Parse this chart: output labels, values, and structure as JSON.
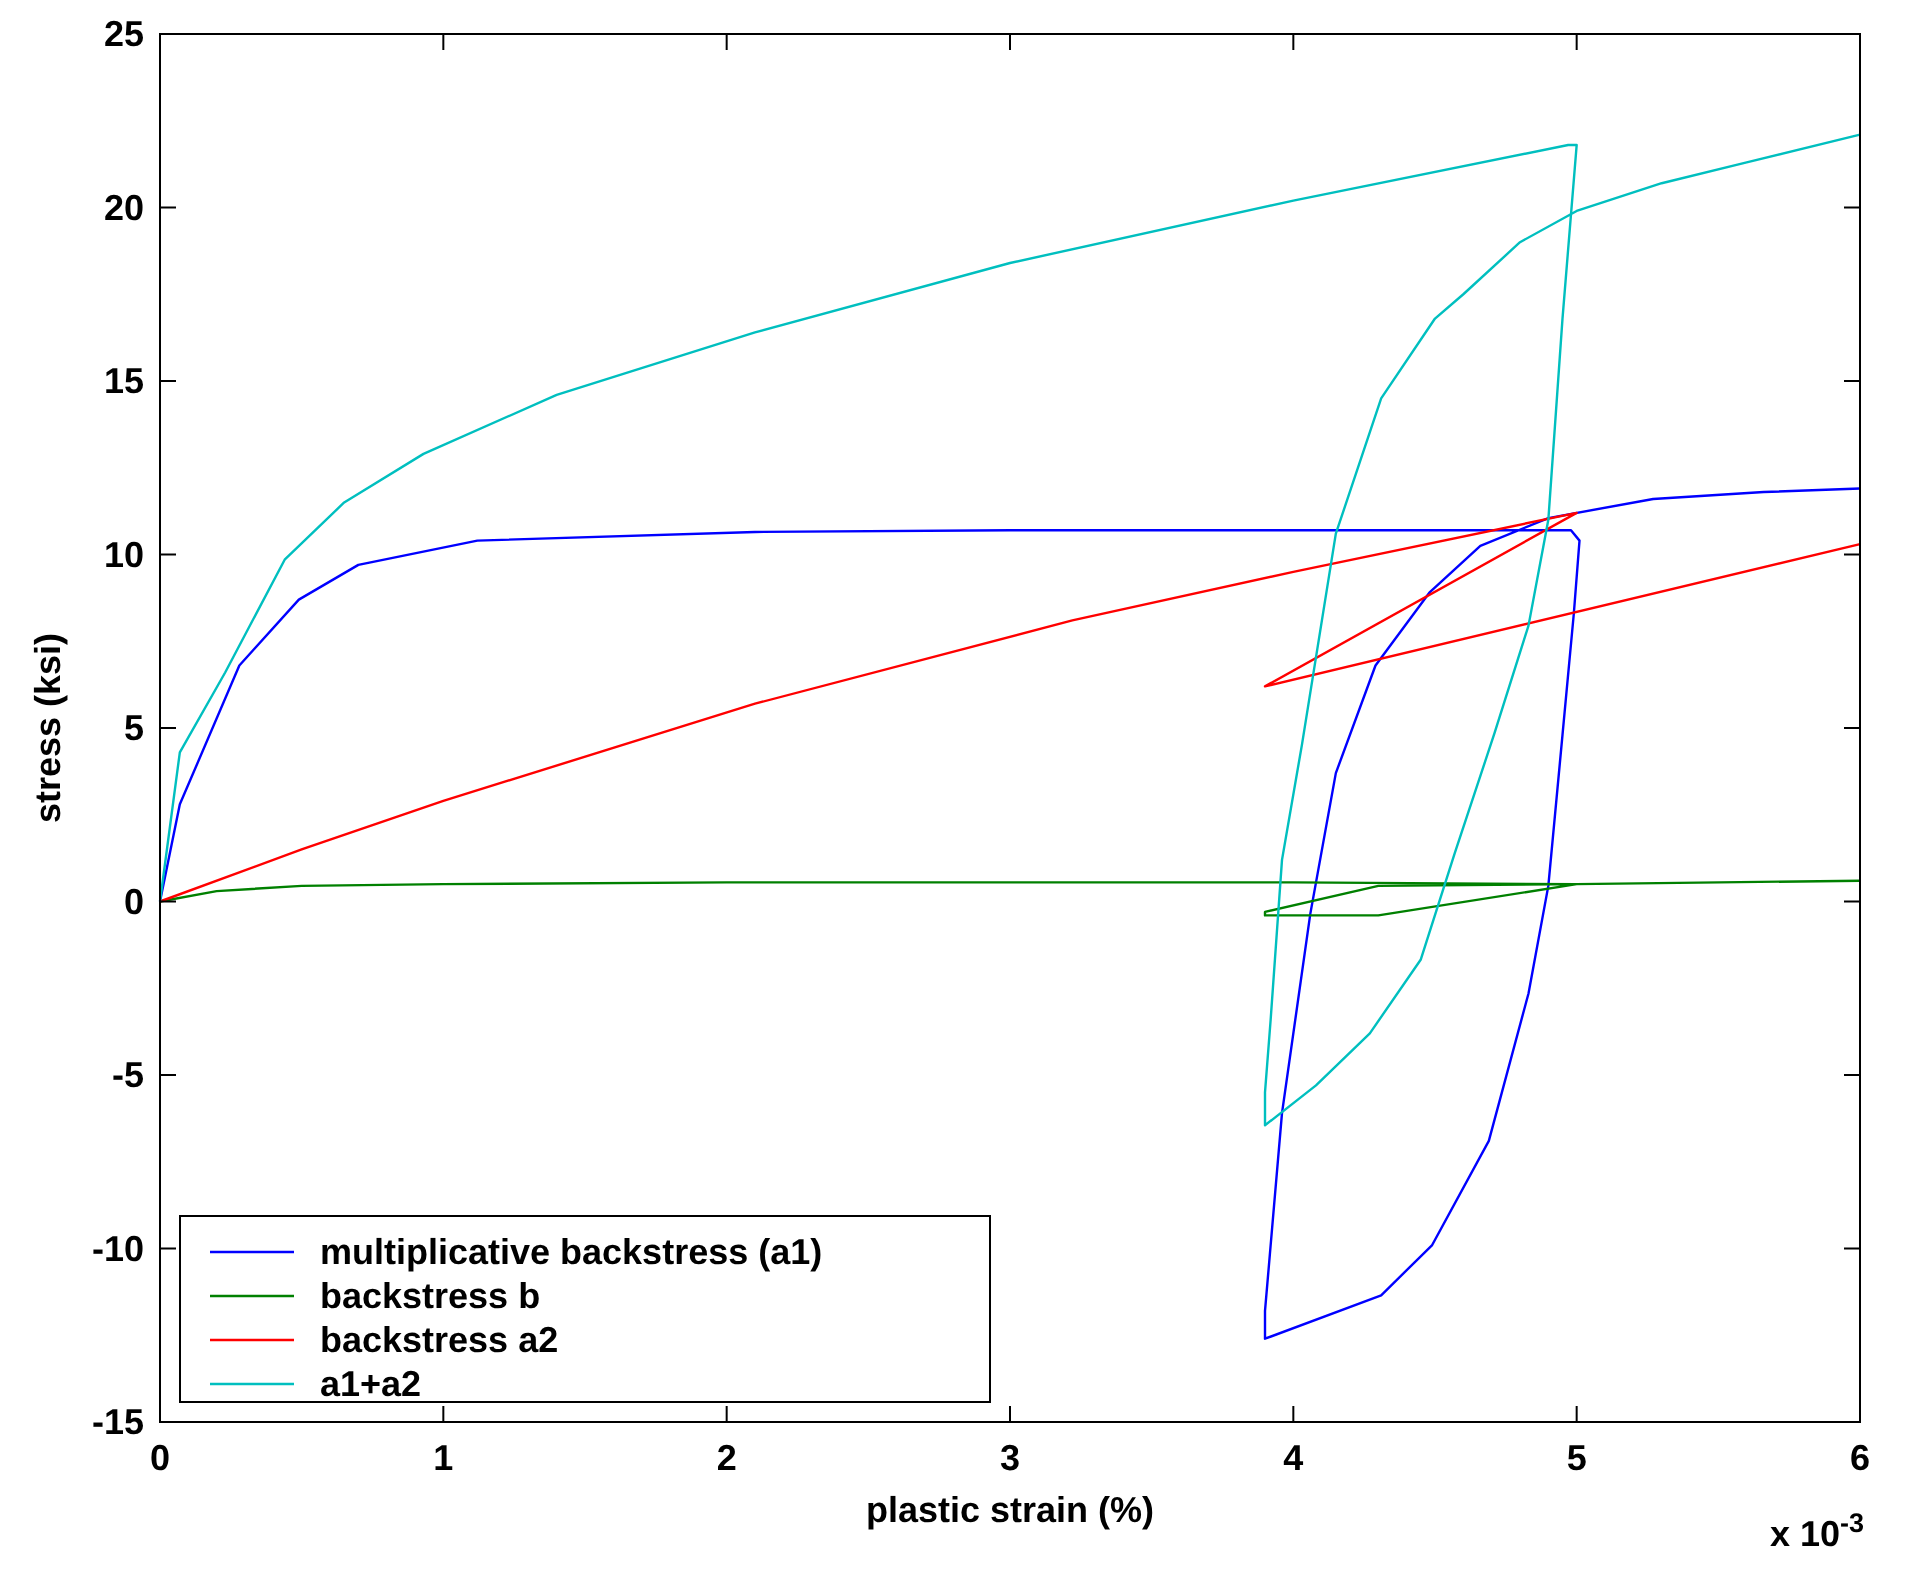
{
  "chart_data": {
    "type": "line",
    "xlabel": "plastic strain (%)",
    "ylabel": "stress (ksi)",
    "xlim": [
      0,
      6
    ],
    "ylim": [
      -15,
      25
    ],
    "xticks": [
      0,
      1,
      2,
      3,
      4,
      5,
      6
    ],
    "yticks": [
      -15,
      -10,
      -5,
      0,
      5,
      10,
      15,
      20,
      25
    ],
    "grid": false,
    "legend": "bottom left",
    "line_style": "solid",
    "annotations": [
      "x 10$^{-3}$"
    ],
    "series": [
      {
        "name": "multiplicative backstress (a1)",
        "color": "#0000ff",
        "x": [
          0,
          0.07,
          0.28,
          0.49,
          0.7,
          1.12,
          2.1,
          3,
          4,
          4.98,
          5.01,
          4.99,
          4.95,
          4.9,
          4.83,
          4.69,
          4.49,
          4.31,
          3.9,
          3.9,
          3.96,
          4.06,
          4.15,
          4.29,
          4.48,
          4.66,
          4.9,
          5.27,
          5.66,
          6
        ],
        "values": [
          0,
          2.8,
          6.8,
          8.7,
          9.7,
          10.4,
          10.65,
          10.7,
          10.7,
          10.7,
          10.4,
          8.3,
          4.8,
          0.45,
          -2.65,
          -6.9,
          -9.9,
          -11.35,
          -12.6,
          -11.8,
          -6.1,
          -0.35,
          3.7,
          6.8,
          8.9,
          10.25,
          11.05,
          11.6,
          11.8,
          11.9
        ]
      },
      {
        "name": "backstress b",
        "color": "#008000",
        "x": [
          0,
          0.2,
          0.5,
          1,
          2,
          3,
          4,
          5,
          4.3,
          3.9,
          3.9,
          4.3,
          5,
          6
        ],
        "values": [
          0,
          0.3,
          0.45,
          0.5,
          0.55,
          0.55,
          0.55,
          0.5,
          0.45,
          -0.3,
          -0.4,
          -0.4,
          0.5,
          0.6
        ]
      },
      {
        "name": "backstress a2",
        "color": "#ff0000",
        "x": [
          0,
          0.5,
          1,
          2.1,
          3.22,
          4,
          5,
          3.9,
          6
        ],
        "values": [
          0,
          1.5,
          2.9,
          5.7,
          8.1,
          9.5,
          11.2,
          6.2,
          10.3
        ]
      },
      {
        "name": "a1+a2",
        "color": "#00bfbf",
        "x": [
          0,
          0.07,
          0.23,
          0.44,
          0.65,
          0.93,
          1.4,
          2.1,
          3,
          4,
          4.97,
          5,
          4.95,
          4.9,
          4.83,
          4.71,
          4.57,
          4.45,
          4.27,
          4.08,
          3.9,
          3.9,
          3.92,
          3.96,
          4.03,
          4.15,
          4.31,
          4.5,
          4.6,
          4.8,
          5,
          5.3,
          5.6,
          6
        ],
        "values": [
          0,
          4.3,
          6.6,
          9.85,
          11.5,
          12.9,
          14.6,
          16.4,
          18.4,
          20.2,
          21.8,
          21.8,
          16.8,
          11,
          7.95,
          4.85,
          1.4,
          -1.67,
          -3.8,
          -5.3,
          -6.45,
          -5.5,
          -3.4,
          1.2,
          4.5,
          10.6,
          14.5,
          16.8,
          17.5,
          19,
          19.9,
          20.7,
          21.3,
          22.1
        ]
      }
    ]
  }
}
